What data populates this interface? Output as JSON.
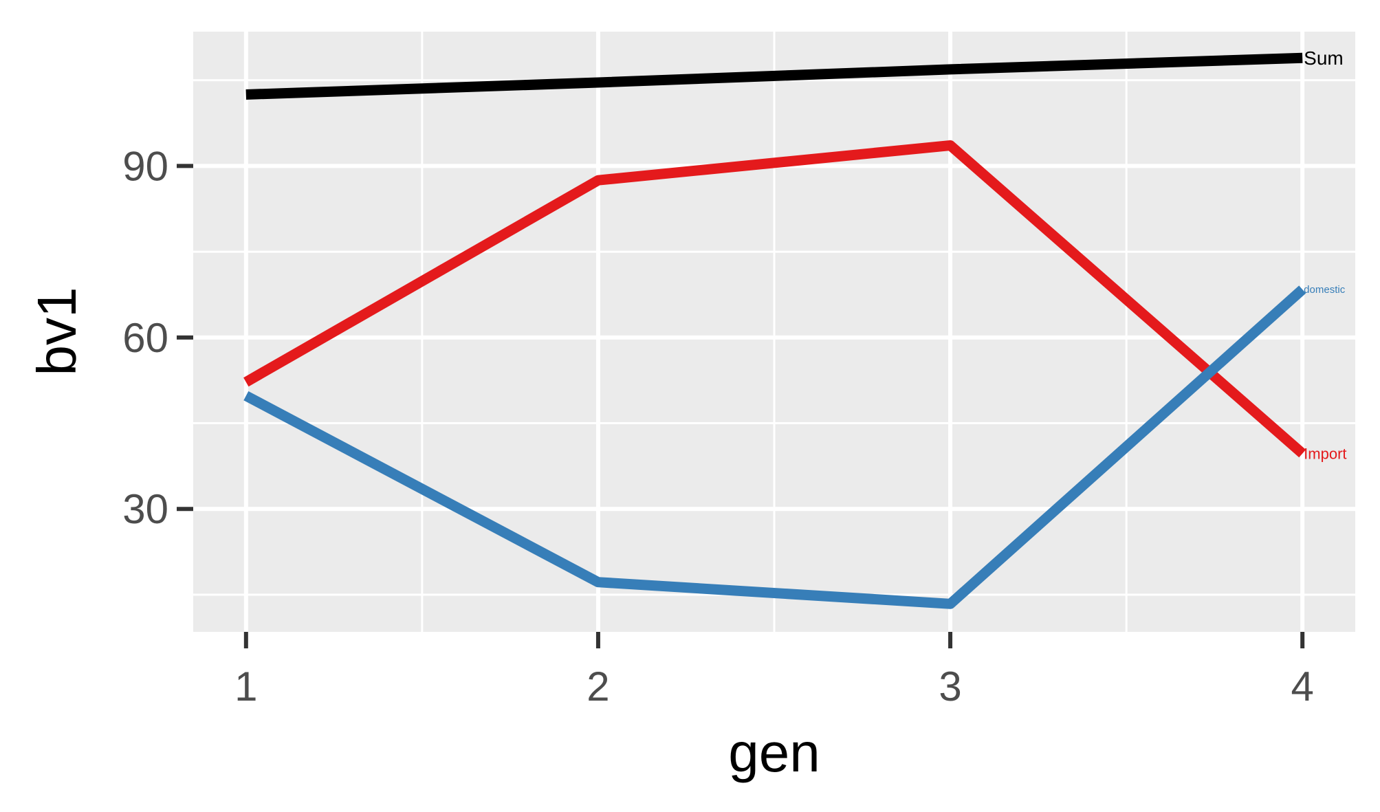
{
  "chart_data": {
    "type": "line",
    "xlabel": "gen",
    "ylabel": "bv1",
    "x": [
      1,
      2,
      3,
      4
    ],
    "xlim": [
      0.85,
      4.15
    ],
    "ylim": [
      8.5,
      113.5
    ],
    "xticks": [
      1,
      2,
      3,
      4
    ],
    "yticks": [
      30,
      60,
      90
    ],
    "xtick_labels": [
      "1",
      "2",
      "3",
      "4"
    ],
    "ytick_labels": [
      "30",
      "60",
      "90"
    ],
    "grid": true,
    "legend": "none",
    "panel_background": "#EBEBEB",
    "grid_color": "#FFFFFF",
    "series": [
      {
        "name": "Sum",
        "color": "#000000",
        "values": [
          102.5,
          104.6,
          106.9,
          108.9
        ]
      },
      {
        "name": "Import",
        "color": "#E41A1C",
        "values": [
          52.2,
          87.5,
          93.6,
          39.7
        ]
      },
      {
        "name": "domestic",
        "color": "#377EB8",
        "values": [
          49.8,
          17.2,
          13.4,
          68.4
        ]
      }
    ]
  }
}
